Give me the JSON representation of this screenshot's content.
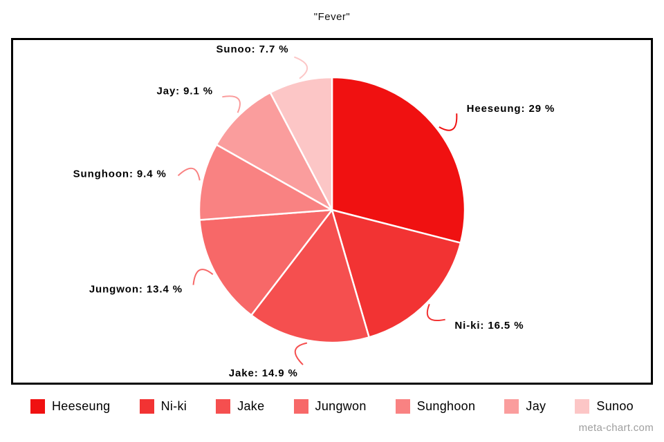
{
  "title": "\"Fever\"",
  "watermark": "meta-chart.com",
  "chart_data": {
    "type": "pie",
    "title": "\"Fever\"",
    "unit": "%",
    "legend_position": "bottom",
    "start_angle_deg": 0,
    "direction": "clockwise",
    "labels_style": "outside-with-leader-lines",
    "slices": [
      {
        "label": "Heeseung",
        "value": 29,
        "label_text": "Heeseung: 29 %",
        "color": "#f01111"
      },
      {
        "label": "Ni-ki",
        "value": 16.5,
        "label_text": "Ni-ki: 16.5 %",
        "color": "#f23333"
      },
      {
        "label": "Jake",
        "value": 14.9,
        "label_text": "Jake: 14.9 %",
        "color": "#f54f4f"
      },
      {
        "label": "Jungwon",
        "value": 13.4,
        "label_text": "Jungwon: 13.4 %",
        "color": "#f76868"
      },
      {
        "label": "Sunghoon",
        "value": 9.4,
        "label_text": "Sunghoon: 9.4 %",
        "color": "#f98282"
      },
      {
        "label": "Jay",
        "value": 9.1,
        "label_text": "Jay: 9.1 %",
        "color": "#fa9d9d"
      },
      {
        "label": "Sunoo",
        "value": 7.7,
        "label_text": "Sunoo: 7.7 %",
        "color": "#fcc6c6"
      }
    ]
  }
}
